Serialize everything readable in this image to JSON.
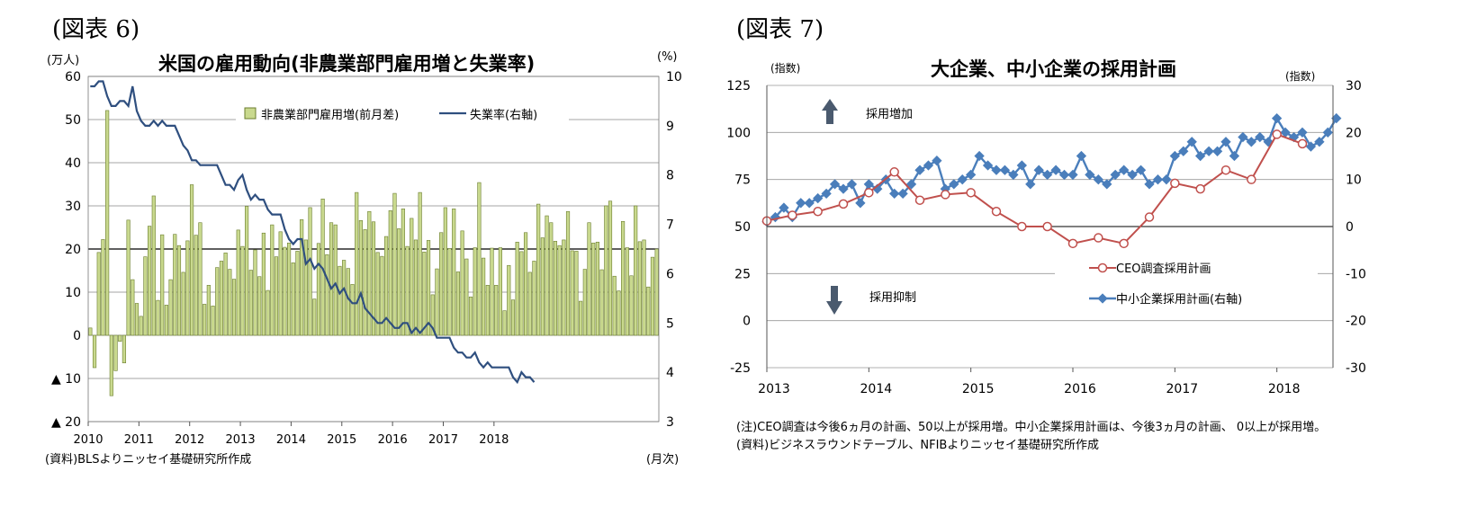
{
  "left": {
    "figure_label": "(図表 6)",
    "title": "米国の雇用動向(非農業部門雇用増と失業率)",
    "left_unit": "(万人)",
    "right_unit": "(%)",
    "x_unit": "(月次)",
    "source": "(資料)BLSよりニッセイ基礎研究所作成",
    "legend_bar": "非農業部門雇用増(前月差)",
    "legend_line": "失業率(右軸)",
    "bar_color": "#c9d98e",
    "line_color": "#2f4f7f",
    "left_ticks": [
      "60",
      "50",
      "40",
      "30",
      "20",
      "10",
      "0",
      "▲ 10",
      "▲ 20"
    ],
    "right_ticks": [
      "10",
      "9",
      "8",
      "7",
      "6",
      "5",
      "4",
      "3"
    ],
    "x_ticks": [
      "2010",
      "2011",
      "2012",
      "2013",
      "2014",
      "2015",
      "2016",
      "2017",
      "2018"
    ]
  },
  "right": {
    "figure_label": "(図表 7)",
    "title": "大企業、中小企業の採用計画",
    "left_unit": "(指数)",
    "right_unit": "(指数)",
    "up_label": "採用増加",
    "down_label": "採用抑制",
    "legend_ceo": "CEO調査採用計画",
    "legend_sme": "中小企業採用計画(右軸)",
    "ceo_color": "#c0504d",
    "sme_color": "#4a7ebb",
    "note1": "(注)CEO調査は今後6ヵ月の計画、50以上が採用増。中小企業採用計画は、今後3ヵ月の計画、 0以上が採用増。",
    "note2": "(資料)ビジネスラウンドテーブル、NFIBよりニッセイ基礎研究所作成",
    "left_ticks": [
      "125",
      "100",
      "75",
      "50",
      "25",
      "0",
      "-25"
    ],
    "right_ticks": [
      "30",
      "20",
      "10",
      "0",
      "-10",
      "-20",
      "-30"
    ],
    "x_ticks": [
      "2013",
      "2014",
      "2015",
      "2016",
      "2017",
      "2018"
    ]
  },
  "chart_data": [
    {
      "type": "bar+line",
      "title": "米国の雇用動向(非農業部門雇用増と失業率)",
      "x_start": "2010-01",
      "ylabel_left": "(万人)",
      "ylim_left": [
        -20,
        60
      ],
      "ylabel_right": "(%)",
      "ylim_right": [
        3,
        10
      ],
      "series": [
        {
          "name": "非農業部門雇用増(前月差)",
          "axis": "left",
          "type": "bar",
          "values": [
            1.7,
            -7.5,
            19.2,
            22.2,
            52.1,
            -14.0,
            -8.2,
            -1.4,
            -6.4,
            26.7,
            12.9,
            7.4,
            4.4,
            18.2,
            25.3,
            32.3,
            8.1,
            23.3,
            7.0,
            12.9,
            23.4,
            20.8,
            14.6,
            21.9,
            34.9,
            23.2,
            26.1,
            7.2,
            11.6,
            6.8,
            15.7,
            17.2,
            19.1,
            15.3,
            13.0,
            24.4,
            20.6,
            29.9,
            15.1,
            19.8,
            13.6,
            23.7,
            10.4,
            25.6,
            18.2,
            24.0,
            20.4,
            21.4,
            16.8,
            19.5,
            26.8,
            22.1,
            29.6,
            8.4,
            21.3,
            31.6,
            18.7,
            26.1,
            25.6,
            16.0,
            17.4,
            15.5,
            11.8,
            33.1,
            26.6,
            24.5,
            28.7,
            26.3,
            19.2,
            18.3,
            22.9,
            28.9,
            32.9,
            24.7,
            29.3,
            20.6,
            27.1,
            22.1,
            33.1,
            19.3,
            22.0,
            9.4,
            15.4,
            23.8,
            29.6,
            20.1,
            29.3,
            14.7,
            24.2,
            17.7,
            8.9,
            20.3,
            35.4,
            17.9,
            11.6,
            20.2,
            11.6,
            20.3,
            5.7,
            16.2,
            8.2,
            21.6,
            19.4,
            23.8,
            14.6,
            17.2,
            30.4,
            22.6,
            27.7,
            26.1,
            21.8,
            20.8,
            22.1,
            28.7,
            19.6,
            19.5,
            7.9,
            15.3,
            26.1,
            21.4,
            21.6,
            15.2,
            30.0,
            31.1,
            13.7,
            10.3,
            26.4,
            20.3,
            13.8,
            30.0,
            21.7,
            22.1,
            11.2,
            18.1,
            20.0
          ]
        },
        {
          "name": "失業率(右軸)",
          "axis": "right",
          "type": "line",
          "values": [
            9.8,
            9.8,
            9.9,
            9.9,
            9.6,
            9.4,
            9.4,
            9.5,
            9.5,
            9.4,
            9.8,
            9.3,
            9.1,
            9.0,
            9.0,
            9.1,
            9.0,
            9.1,
            9.0,
            9.0,
            9.0,
            8.8,
            8.6,
            8.5,
            8.3,
            8.3,
            8.2,
            8.2,
            8.2,
            8.2,
            8.2,
            8.0,
            7.8,
            7.8,
            7.7,
            7.9,
            8.0,
            7.7,
            7.5,
            7.6,
            7.5,
            7.5,
            7.3,
            7.2,
            7.2,
            7.2,
            6.9,
            6.7,
            6.6,
            6.7,
            6.7,
            6.2,
            6.3,
            6.1,
            6.2,
            6.1,
            5.9,
            5.7,
            5.8,
            5.6,
            5.7,
            5.5,
            5.4,
            5.4,
            5.6,
            5.3,
            5.2,
            5.1,
            5.0,
            5.0,
            5.1,
            5.0,
            4.9,
            4.9,
            5.0,
            5.0,
            4.8,
            4.9,
            4.8,
            4.9,
            5.0,
            4.9,
            4.7,
            4.7,
            4.7,
            4.7,
            4.5,
            4.4,
            4.4,
            4.3,
            4.3,
            4.4,
            4.2,
            4.1,
            4.2,
            4.1,
            4.1,
            4.1,
            4.1,
            4.1,
            3.9,
            3.8,
            4.0,
            3.9,
            3.9,
            3.8
          ]
        }
      ]
    },
    {
      "type": "line",
      "title": "大企業、中小企業の採用計画",
      "x": [
        2013.0,
        2013.25,
        2013.5,
        2013.75,
        2014.0,
        2014.25,
        2014.5,
        2014.75,
        2015.0,
        2015.25,
        2015.5,
        2015.75,
        2016.0,
        2016.25,
        2016.5,
        2016.75,
        2017.0,
        2017.25,
        2017.5,
        2017.75,
        2018.0,
        2018.25,
        2018.5
      ],
      "ylabel_left": "(指数)",
      "ylim_left": [
        -25,
        125
      ],
      "ylabel_right": "(指数)",
      "ylim_right": [
        -30,
        30
      ],
      "series": [
        {
          "name": "CEO調査採用計画",
          "axis": "left",
          "values": [
            53,
            56,
            58,
            62,
            68,
            79,
            64,
            67,
            68,
            58,
            50,
            50,
            41,
            44,
            41,
            55,
            73,
            70,
            80,
            75,
            99,
            94,
            null
          ]
        }
      ],
      "series_right": [
        {
          "name": "中小企業採用計画(右軸)",
          "axis": "right",
          "x_start": 2013.0,
          "x_step": 0.08333,
          "values": [
            1,
            2,
            4,
            2,
            5,
            5,
            6,
            7,
            9,
            8,
            9,
            5,
            9,
            8,
            10,
            7,
            7,
            9,
            12,
            13,
            14,
            8,
            9,
            10,
            11,
            15,
            13,
            12,
            12,
            11,
            13,
            9,
            12,
            11,
            12,
            11,
            11,
            15,
            11,
            10,
            9,
            11,
            12,
            11,
            12,
            9,
            10,
            10,
            15,
            16,
            18,
            15,
            16,
            16,
            18,
            15,
            19,
            18,
            19,
            18,
            23,
            20,
            19,
            20,
            17,
            18,
            20,
            23
          ]
        }
      ]
    }
  ]
}
